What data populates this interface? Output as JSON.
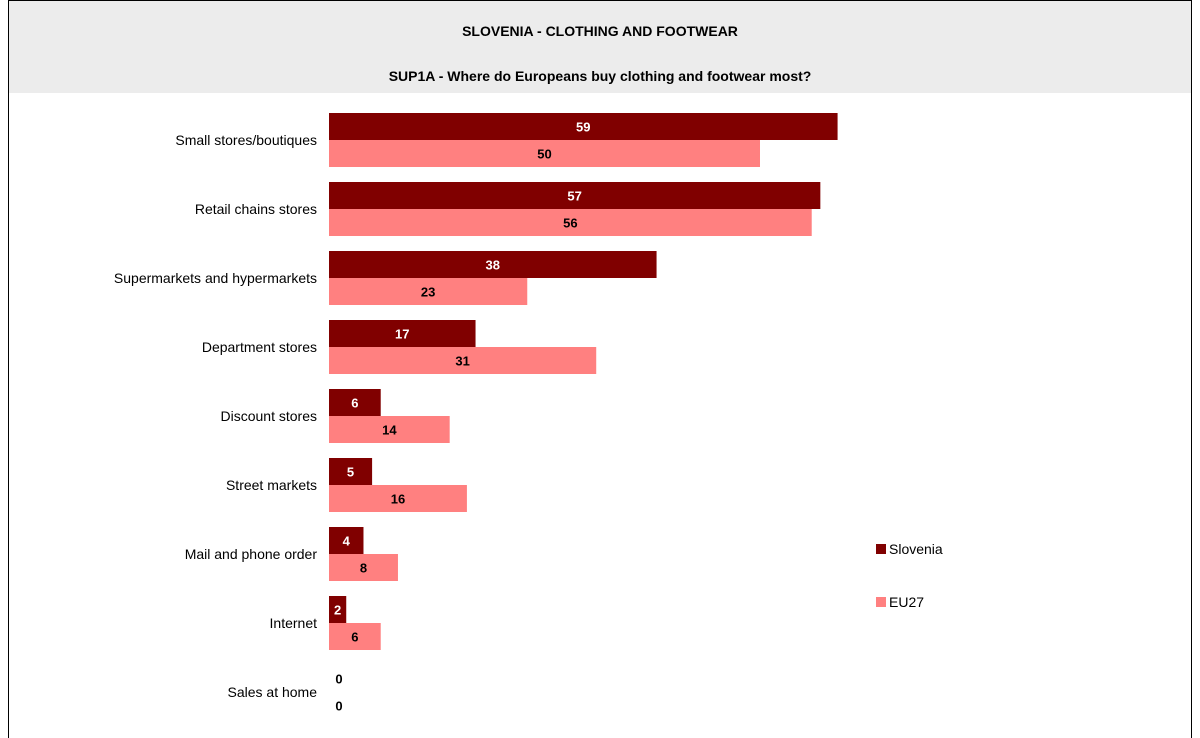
{
  "header": {
    "title": "SLOVENIA - CLOTHING AND FOOTWEAR",
    "subtitle": "SUP1A - Where do Europeans buy clothing and footwear most?"
  },
  "legend": {
    "series1": "Slovenia",
    "series2": "EU27"
  },
  "colors": {
    "slovenia": "#800000",
    "eu27": "#ff8080"
  },
  "chart_data": {
    "type": "bar",
    "orientation": "horizontal",
    "title": "SLOVENIA - CLOTHING AND FOOTWEAR",
    "subtitle": "SUP1A - Where do Europeans buy clothing and footwear most?",
    "categories": [
      "Small stores/boutiques",
      "Retail chains stores",
      "Supermarkets and hypermarkets",
      "Department stores",
      "Discount stores",
      "Street markets",
      "Mail and phone order",
      "Internet",
      "Sales at home"
    ],
    "series": [
      {
        "name": "Slovenia",
        "values": [
          59,
          57,
          38,
          17,
          6,
          5,
          4,
          2,
          0
        ]
      },
      {
        "name": "EU27",
        "values": [
          50,
          56,
          23,
          31,
          14,
          16,
          8,
          6,
          0
        ]
      }
    ],
    "xlim": [
      0,
      100
    ],
    "grid": false,
    "legend_position": "right"
  }
}
